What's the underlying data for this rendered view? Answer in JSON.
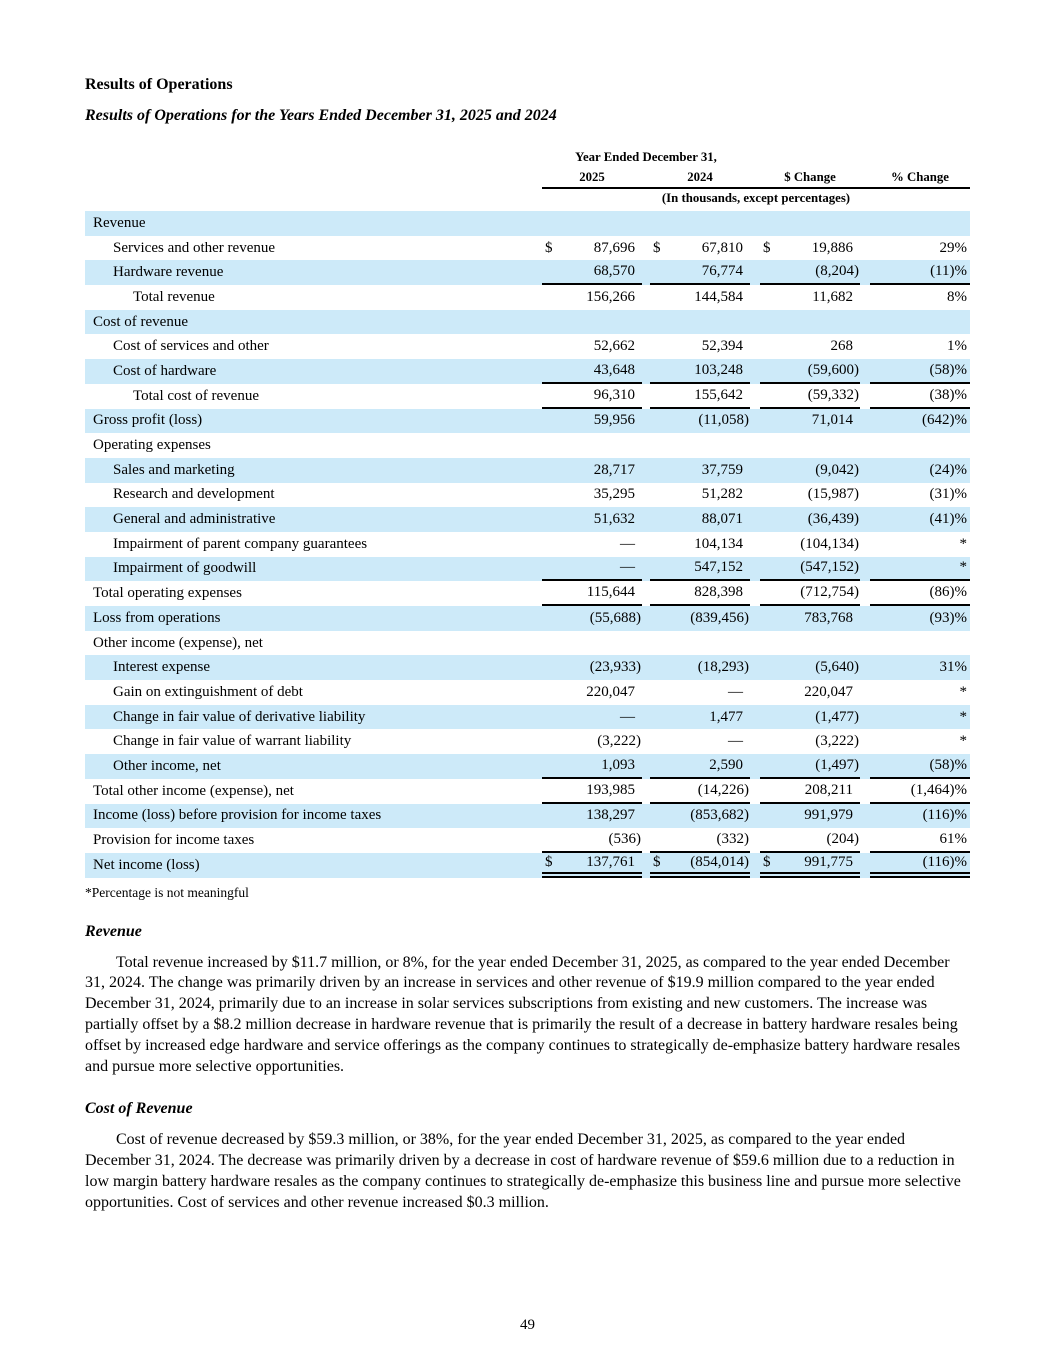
{
  "page": {
    "title": "Results of Operations",
    "subtitle": "Results of Operations for the Years Ended December 31, 2025 and 2024",
    "footnote": "*Percentage is not meaningful",
    "page_number": "49"
  },
  "table": {
    "header": {
      "span_label": "Year Ended December 31,",
      "columns": [
        "2025",
        "2024",
        "$ Change",
        "% Change"
      ],
      "units_note": "(In thousands, except percentages)"
    },
    "colors": {
      "row_highlight": "#cdeaf9",
      "rule": "#000000"
    },
    "rows": [
      {
        "label": "Revenue",
        "indent": 0,
        "shaded": true
      },
      {
        "label": "Services and other revenue",
        "indent": 1,
        "shaded": false,
        "dollar": true,
        "v2025": "87,696",
        "v2024": "67,810",
        "change": "19,886",
        "pct": "29%"
      },
      {
        "label": "Hardware revenue",
        "indent": 1,
        "shaded": true,
        "v2025": "68,570",
        "v2024": "76,774",
        "change": "(8,204)",
        "pct": "(11)%",
        "border": "single"
      },
      {
        "label": "Total revenue",
        "indent": 2,
        "shaded": false,
        "v2025": "156,266",
        "v2024": "144,584",
        "change": "11,682",
        "pct": "8%"
      },
      {
        "label": "Cost of revenue",
        "indent": 0,
        "shaded": true
      },
      {
        "label": "Cost of services and other",
        "indent": 1,
        "shaded": false,
        "v2025": "52,662",
        "v2024": "52,394",
        "change": "268",
        "pct": "1%"
      },
      {
        "label": "Cost of hardware",
        "indent": 1,
        "shaded": true,
        "v2025": "43,648",
        "v2024": "103,248",
        "change": "(59,600)",
        "pct": "(58)%",
        "border": "single"
      },
      {
        "label": "Total cost of revenue",
        "indent": 2,
        "shaded": false,
        "v2025": "96,310",
        "v2024": "155,642",
        "change": "(59,332)",
        "pct": "(38)%",
        "border": "single"
      },
      {
        "label": "Gross profit (loss)",
        "indent": 0,
        "shaded": true,
        "v2025": "59,956",
        "v2024": "(11,058)",
        "change": "71,014",
        "pct": "(642)%"
      },
      {
        "label": "Operating expenses",
        "indent": 0,
        "shaded": false
      },
      {
        "label": "Sales and marketing",
        "indent": 1,
        "shaded": true,
        "v2025": "28,717",
        "v2024": "37,759",
        "change": "(9,042)",
        "pct": "(24)%"
      },
      {
        "label": "Research and development",
        "indent": 1,
        "shaded": false,
        "v2025": "35,295",
        "v2024": "51,282",
        "change": "(15,987)",
        "pct": "(31)%"
      },
      {
        "label": "General and administrative",
        "indent": 1,
        "shaded": true,
        "v2025": "51,632",
        "v2024": "88,071",
        "change": "(36,439)",
        "pct": "(41)%"
      },
      {
        "label": "Impairment of parent company guarantees",
        "indent": 1,
        "shaded": false,
        "v2025": "—",
        "v2024": "104,134",
        "change": "(104,134)",
        "pct": "*"
      },
      {
        "label": "Impairment of goodwill",
        "indent": 1,
        "shaded": true,
        "v2025": "—",
        "v2024": "547,152",
        "change": "(547,152)",
        "pct": "*",
        "border": "single"
      },
      {
        "label": "Total operating expenses",
        "indent": 0,
        "shaded": false,
        "v2025": "115,644",
        "v2024": "828,398",
        "change": "(712,754)",
        "pct": "(86)%",
        "border": "single"
      },
      {
        "label": "Loss from operations",
        "indent": 0,
        "shaded": true,
        "v2025": "(55,688)",
        "v2024": "(839,456)",
        "change": "783,768",
        "pct": "(93)%"
      },
      {
        "label": "Other income (expense), net",
        "indent": 0,
        "shaded": false
      },
      {
        "label": "Interest expense",
        "indent": 1,
        "shaded": true,
        "v2025": "(23,933)",
        "v2024": "(18,293)",
        "change": "(5,640)",
        "pct": "31%"
      },
      {
        "label": "Gain on extinguishment of debt",
        "indent": 1,
        "shaded": false,
        "v2025": "220,047",
        "v2024": "—",
        "change": "220,047",
        "pct": "*"
      },
      {
        "label": "Change in fair value of derivative liability",
        "indent": 1,
        "shaded": true,
        "v2025": "—",
        "v2024": "1,477",
        "change": "(1,477)",
        "pct": "*"
      },
      {
        "label": "Change in fair value of warrant liability",
        "indent": 1,
        "shaded": false,
        "v2025": "(3,222)",
        "v2024": "—",
        "change": "(3,222)",
        "pct": "*"
      },
      {
        "label": "Other income, net",
        "indent": 1,
        "shaded": true,
        "v2025": "1,093",
        "v2024": "2,590",
        "change": "(1,497)",
        "pct": "(58)%",
        "border": "single"
      },
      {
        "label": "Total other income (expense), net",
        "indent": 0,
        "shaded": false,
        "v2025": "193,985",
        "v2024": "(14,226)",
        "change": "208,211",
        "pct": "(1,464)%",
        "border": "single"
      },
      {
        "label": "Income (loss) before provision for income taxes",
        "indent": 0,
        "shaded": true,
        "v2025": "138,297",
        "v2024": "(853,682)",
        "change": "991,979",
        "pct": "(116)%"
      },
      {
        "label": "Provision for income taxes",
        "indent": 0,
        "shaded": false,
        "v2025": "(536)",
        "v2024": "(332)",
        "change": "(204)",
        "pct": "61%",
        "border": "single"
      },
      {
        "label": "Net income (loss)",
        "indent": 0,
        "shaded": true,
        "dollar": true,
        "v2025": "137,761",
        "v2024": "(854,014)",
        "change": "991,775",
        "pct": "(116)%",
        "border": "double"
      }
    ]
  },
  "sections": [
    {
      "heading": "Revenue",
      "paragraph": "Total revenue increased by $11.7 million, or 8%, for the year ended December 31, 2025, as compared to the year ended December 31, 2024. The change was primarily driven by an increase in services and other revenue of $19.9 million compared to the year ended December 31, 2024, primarily due to an increase in solar services subscriptions from existing and new customers. The increase was partially offset by a $8.2 million decrease in hardware revenue that is primarily the result of a decrease in battery hardware resales being offset by increased edge hardware and service offerings as the company continues to strategically de-emphasize battery hardware resales and pursue more selective opportunities."
    },
    {
      "heading": "Cost of Revenue",
      "paragraph": "Cost of revenue decreased by $59.3 million, or 38%, for the year ended December 31, 2025, as compared to the year ended December 31, 2024. The decrease was primarily driven by a decrease in cost of hardware revenue of $59.6 million due to a reduction in low margin battery hardware resales as the company continues to strategically de-emphasize this business line and pursue more selective opportunities. Cost of services and other revenue increased $0.3 million."
    }
  ]
}
